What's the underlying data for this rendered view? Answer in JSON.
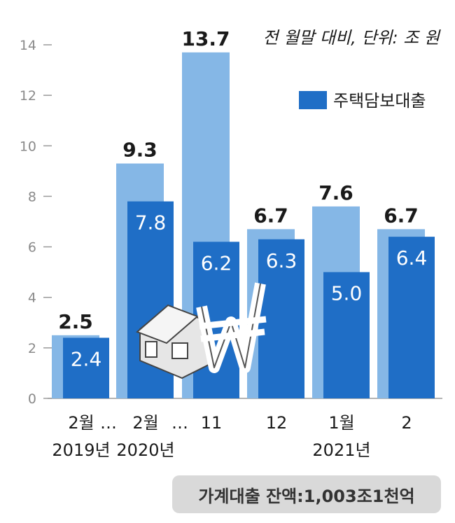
{
  "chart_data": {
    "type": "bar",
    "unit_note": "전 월말 대비, 단위: 조 원",
    "legend": "주택담보대출",
    "y_ticks": [
      "0",
      "2",
      "4",
      "6",
      "8",
      "10",
      "12",
      "14"
    ],
    "ylim": [
      0,
      14
    ],
    "categories": [
      {
        "line1": "2월",
        "line2": "2019년"
      },
      {
        "line1": "2월",
        "line2": "2020년"
      },
      {
        "line1": "11",
        "line2": ""
      },
      {
        "line1": "12",
        "line2": ""
      },
      {
        "line1": "1월",
        "line2": "2021년"
      },
      {
        "line1": "2",
        "line2": ""
      }
    ],
    "gap_marks": [
      "…",
      "…"
    ],
    "series": [
      {
        "values": [
          2.5,
          9.3,
          13.7,
          6.7,
          7.6,
          6.7
        ],
        "labels": [
          "2.5",
          "9.3",
          "13.7",
          "6.7",
          "7.6",
          "6.7"
        ],
        "color": "#85b7e6"
      },
      {
        "name": "주택담보대출",
        "values": [
          2.4,
          7.8,
          6.2,
          6.3,
          5.0,
          6.4
        ],
        "labels": [
          "2.4",
          "7.8",
          "6.2",
          "6.3",
          "5.0",
          "6.4"
        ],
        "color": "#1f6ec6"
      }
    ],
    "balance_note": "가계대출 잔액:1,003조1천억"
  }
}
